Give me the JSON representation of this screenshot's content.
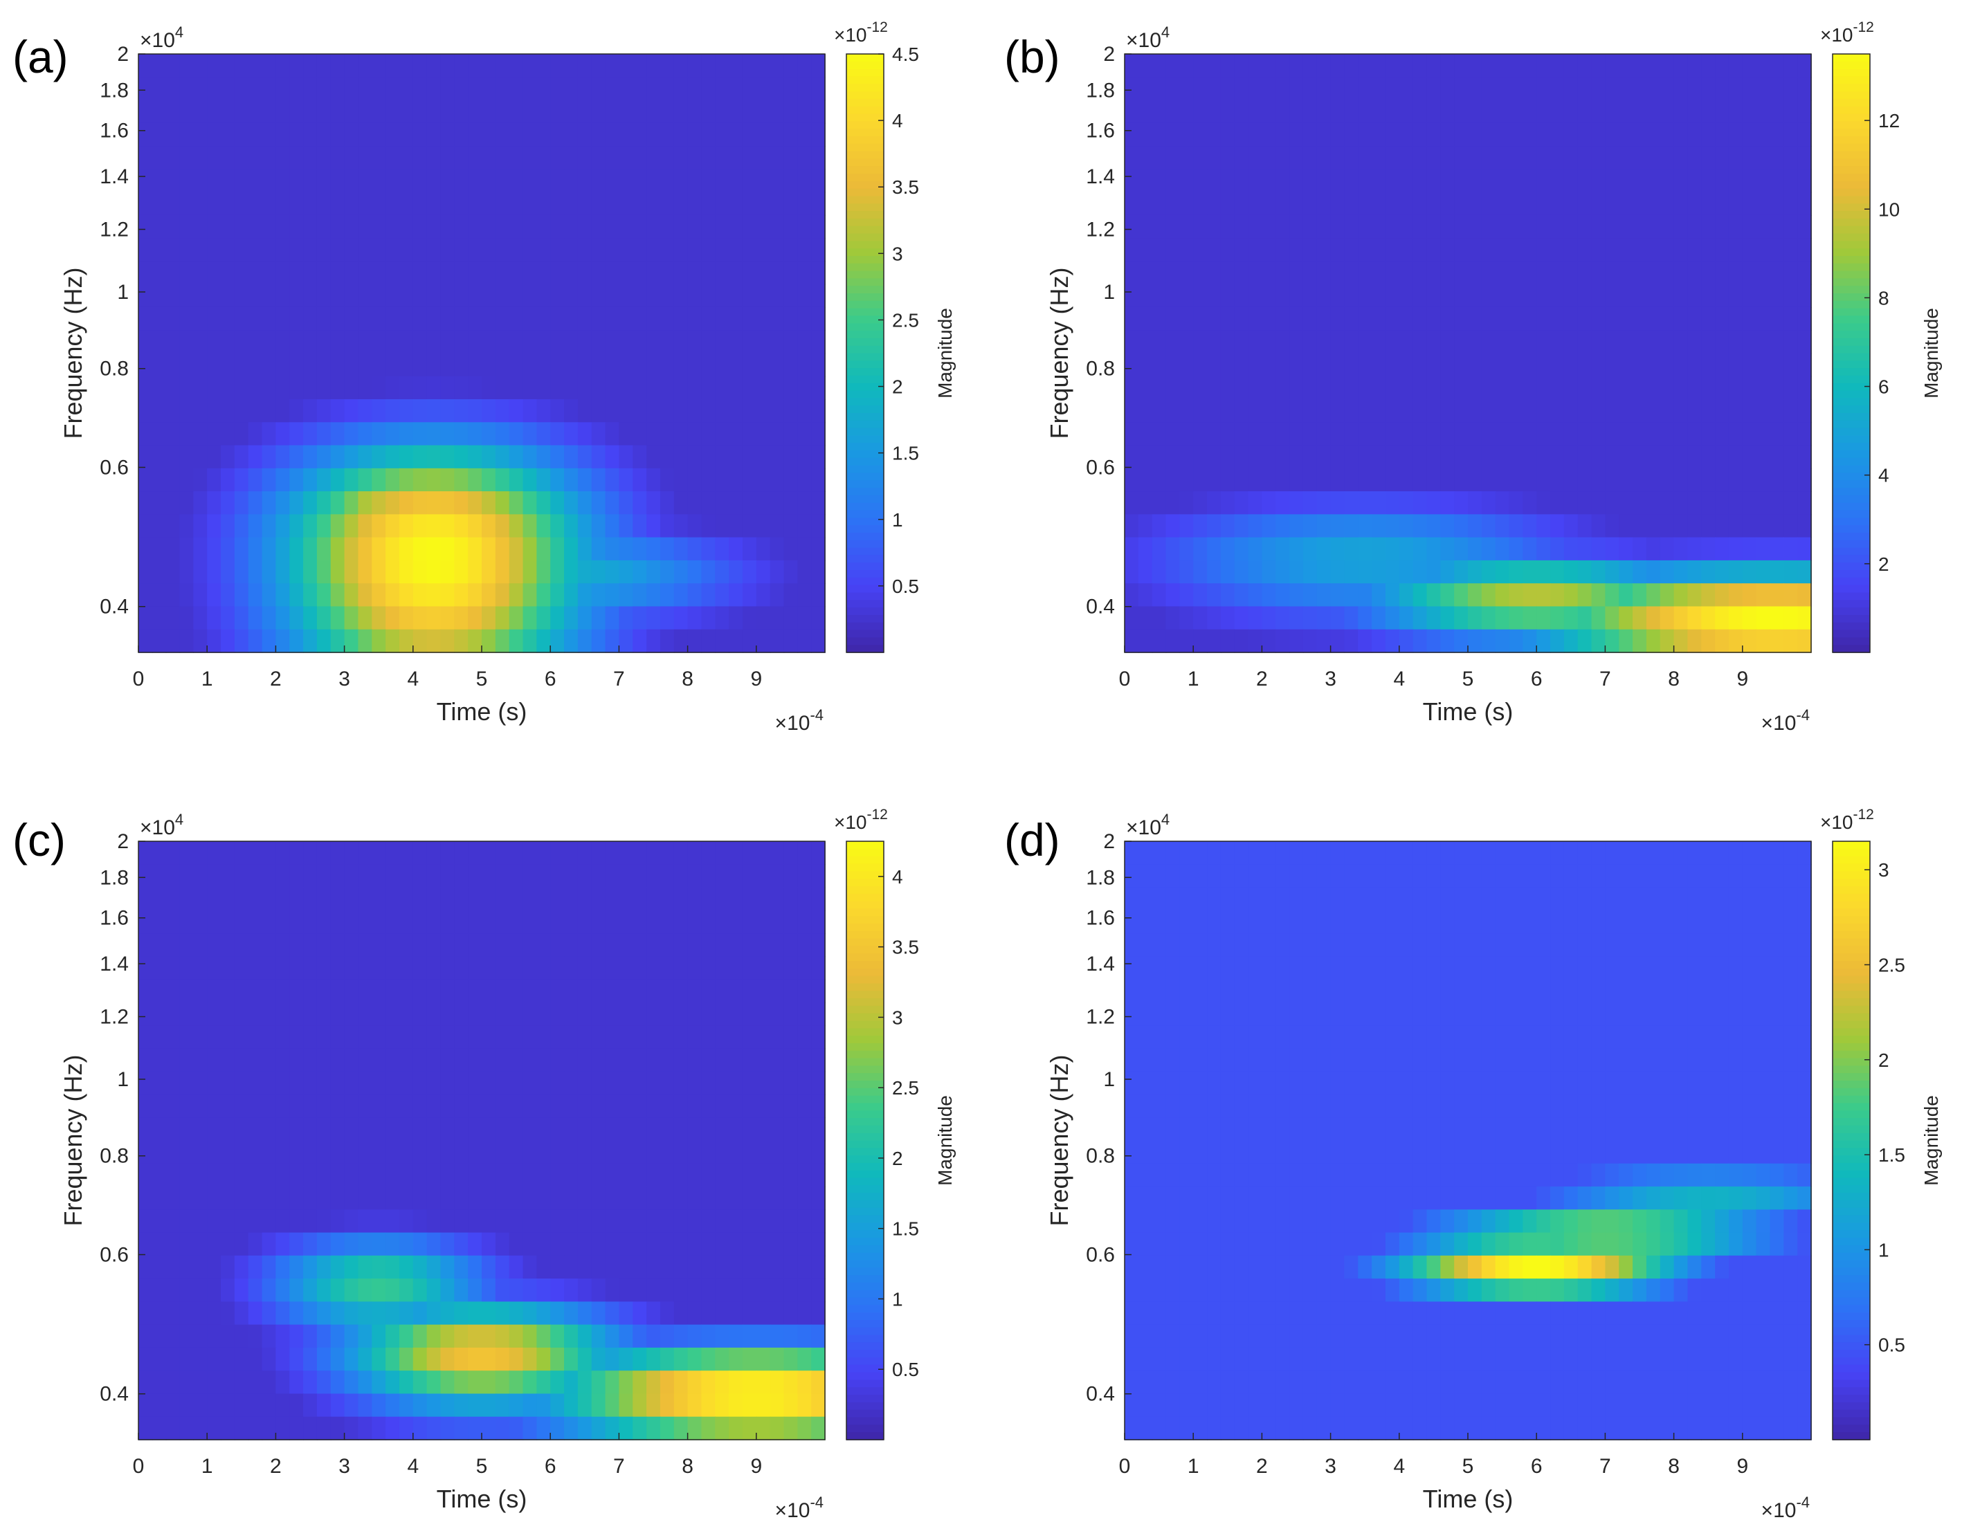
{
  "figure": {
    "colors": {
      "colormap": [
        "#3e26a8",
        "#4743f5",
        "#2c74f5",
        "#1a99e2",
        "#10b9bc",
        "#3bcb8b",
        "#9fc93a",
        "#ecba38",
        "#fbd82d",
        "#f9fb15"
      ],
      "axis": "#262626",
      "background": "#ffffff"
    }
  },
  "chart_data": [
    {
      "panel": "(a)",
      "type": "heatmap",
      "xlabel": "Time (s)",
      "ylabel": "Frequency (Hz)",
      "x_exponent": "×10",
      "x_exponent_power": "-4",
      "y_exponent": "×10",
      "y_exponent_power": "4",
      "xlim": [
        0,
        10
      ],
      "ylim": [
        0.35,
        2
      ],
      "y_scale": "log",
      "xticks": [
        0,
        1,
        2,
        3,
        4,
        5,
        6,
        7,
        8,
        9
      ],
      "xtick_labels": [
        "0",
        "1",
        "2",
        "3",
        "4",
        "5",
        "6",
        "7",
        "8",
        "9"
      ],
      "yticks": [
        0.4,
        0.6,
        0.8,
        1,
        1.2,
        1.4,
        1.6,
        1.8,
        2
      ],
      "ytick_labels": [
        "0.4",
        "0.6",
        "0.8",
        "1",
        "1.2",
        "1.4",
        "1.6",
        "1.8",
        "2"
      ],
      "colorbar": {
        "label": "Magnitude",
        "exponent": "×10",
        "exponent_power": "-12",
        "range": [
          0,
          4.5
        ],
        "ticks": [
          0.5,
          1,
          1.5,
          2,
          2.5,
          3,
          3.5,
          4,
          4.5
        ],
        "tick_labels": [
          "0.5",
          "1",
          "1.5",
          "2",
          "2.5",
          "3",
          "3.5",
          "4",
          "4.5"
        ]
      },
      "hotspots": [
        {
          "time": 4.3,
          "freq": 0.46,
          "magnitude": 4.5,
          "time_spread": 2.2,
          "freq_spread": 0.18
        },
        {
          "time": 3.6,
          "freq": 0.55,
          "magnitude": 3.4,
          "time_spread": 1.2,
          "freq_spread": 0.05
        },
        {
          "time": 6.2,
          "freq": 0.44,
          "magnitude": 1.8,
          "time_spread": 2.5,
          "freq_spread": 0.06
        }
      ],
      "baseline": 0.25
    },
    {
      "panel": "(b)",
      "type": "heatmap",
      "xlabel": "Time (s)",
      "ylabel": "Frequency (Hz)",
      "x_exponent": "×10",
      "x_exponent_power": "-4",
      "y_exponent": "×10",
      "y_exponent_power": "4",
      "xlim": [
        0,
        10
      ],
      "ylim": [
        0.35,
        2
      ],
      "y_scale": "log",
      "xticks": [
        0,
        1,
        2,
        3,
        4,
        5,
        6,
        7,
        8,
        9
      ],
      "xtick_labels": [
        "0",
        "1",
        "2",
        "3",
        "4",
        "5",
        "6",
        "7",
        "8",
        "9"
      ],
      "yticks": [
        0.4,
        0.6,
        0.8,
        1,
        1.2,
        1.4,
        1.6,
        1.8,
        2
      ],
      "ytick_labels": [
        "0.4",
        "0.6",
        "0.8",
        "1",
        "1.2",
        "1.4",
        "1.6",
        "1.8",
        "2"
      ],
      "colorbar": {
        "label": "Magnitude",
        "exponent": "×10",
        "exponent_power": "-12",
        "range": [
          0,
          13.5
        ],
        "ticks": [
          2,
          4,
          6,
          8,
          10,
          12
        ],
        "tick_labels": [
          "2",
          "4",
          "6",
          "8",
          "10",
          "12"
        ]
      },
      "hotspots": [
        {
          "time": 9.5,
          "freq": 0.385,
          "magnitude": 13.5,
          "time_spread": 3.5,
          "freq_spread": 0.06
        },
        {
          "time": 6.0,
          "freq": 0.41,
          "magnitude": 9.5,
          "time_spread": 2.5,
          "freq_spread": 0.05
        },
        {
          "time": 3.5,
          "freq": 0.46,
          "magnitude": 5.0,
          "time_spread": 3.0,
          "freq_spread": 0.08
        }
      ],
      "baseline": 0.8
    },
    {
      "panel": "(c)",
      "type": "heatmap",
      "xlabel": "Time (s)",
      "ylabel": "Frequency (Hz)",
      "x_exponent": "×10",
      "x_exponent_power": "-4",
      "y_exponent": "×10",
      "y_exponent_power": "4",
      "xlim": [
        0,
        10
      ],
      "ylim": [
        0.35,
        2
      ],
      "y_scale": "log",
      "xticks": [
        0,
        1,
        2,
        3,
        4,
        5,
        6,
        7,
        8,
        9
      ],
      "xtick_labels": [
        "0",
        "1",
        "2",
        "3",
        "4",
        "5",
        "6",
        "7",
        "8",
        "9"
      ],
      "yticks": [
        0.4,
        0.6,
        0.8,
        1,
        1.2,
        1.4,
        1.6,
        1.8,
        2
      ],
      "ytick_labels": [
        "0.4",
        "0.6",
        "0.8",
        "1",
        "1.2",
        "1.4",
        "1.6",
        "1.8",
        "2"
      ],
      "colorbar": {
        "label": "Magnitude",
        "exponent": "×10",
        "exponent_power": "-12",
        "range": [
          0,
          4.25
        ],
        "ticks": [
          0.5,
          1,
          1.5,
          2,
          2.5,
          3,
          3.5,
          4
        ],
        "tick_labels": [
          "0.5",
          "1",
          "1.5",
          "2",
          "2.5",
          "3",
          "3.5",
          "4"
        ]
      },
      "hotspots": [
        {
          "time": 9.0,
          "freq": 0.4,
          "magnitude": 4.25,
          "time_spread": 3.0,
          "freq_spread": 0.06
        },
        {
          "time": 5.0,
          "freq": 0.45,
          "magnitude": 3.5,
          "time_spread": 2.0,
          "freq_spread": 0.07
        },
        {
          "time": 3.5,
          "freq": 0.55,
          "magnitude": 2.3,
          "time_spread": 1.6,
          "freq_spread": 0.08
        }
      ],
      "baseline": 0.25
    },
    {
      "panel": "(d)",
      "type": "heatmap",
      "xlabel": "Time (s)",
      "ylabel": "Frequency (Hz)",
      "x_exponent": "×10",
      "x_exponent_power": "-4",
      "y_exponent": "×10",
      "y_exponent_power": "4",
      "xlim": [
        0,
        10
      ],
      "ylim": [
        0.35,
        2
      ],
      "y_scale": "log",
      "xticks": [
        0,
        1,
        2,
        3,
        4,
        5,
        6,
        7,
        8,
        9
      ],
      "xtick_labels": [
        "0",
        "1",
        "2",
        "3",
        "4",
        "5",
        "6",
        "7",
        "8",
        "9"
      ],
      "yticks": [
        0.4,
        0.6,
        0.8,
        1,
        1.2,
        1.4,
        1.6,
        1.8,
        2
      ],
      "ytick_labels": [
        "0.4",
        "0.6",
        "0.8",
        "1",
        "1.2",
        "1.4",
        "1.6",
        "1.8",
        "2"
      ],
      "colorbar": {
        "label": "Magnitude",
        "exponent": "×10",
        "exponent_power": "-12",
        "range": [
          0,
          3.15
        ],
        "ticks": [
          0.5,
          1,
          1.5,
          2,
          2.5,
          3
        ],
        "tick_labels": [
          "0.5",
          "1",
          "1.5",
          "2",
          "2.5",
          "3"
        ]
      },
      "hotspots": [
        {
          "time": 6.0,
          "freq": 0.58,
          "magnitude": 3.15,
          "time_spread": 2.0,
          "freq_spread": 0.05
        },
        {
          "time": 7.0,
          "freq": 0.64,
          "magnitude": 2.2,
          "time_spread": 2.5,
          "freq_spread": 0.05
        },
        {
          "time": 8.5,
          "freq": 0.72,
          "magnitude": 1.4,
          "time_spread": 2.5,
          "freq_spread": 0.05
        }
      ],
      "baseline": 0.45
    }
  ]
}
